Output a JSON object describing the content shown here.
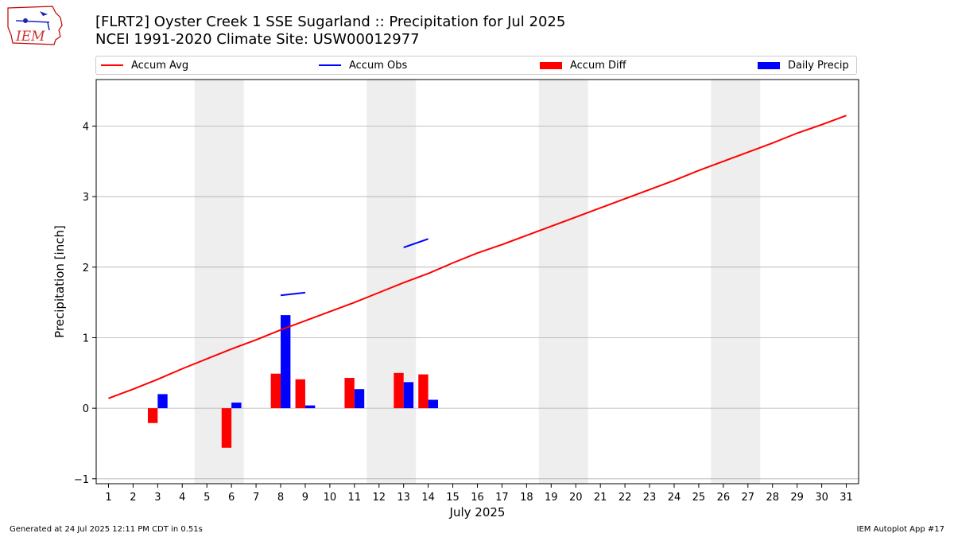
{
  "header": {
    "title_line1": "[FLRT2] Oyster Creek 1 SSE Sugarland :: Precipitation for Jul 2025",
    "title_line2": "NCEI 1991-2020 Climate Site: USW00012977",
    "logo_text": "IEM"
  },
  "footer": {
    "left": "Generated at 24 Jul 2025 12:11 PM CDT in 0.51s",
    "right": "IEM Autoplot App #17"
  },
  "colors": {
    "accum_avg": "#ff0000",
    "accum_obs": "#0000ff",
    "accum_diff": "#ff0000",
    "daily_precip": "#0000ff",
    "weekend_shade": "#eeeeee",
    "grid": "#b0b0b0"
  },
  "chart_data": {
    "type": "bar",
    "title": "[FLRT2] Oyster Creek 1 SSE Sugarland :: Precipitation for Jul 2025",
    "subtitle": "NCEI 1991-2020 Climate Site: USW00012977",
    "xlabel": "July 2025",
    "ylabel": "Precipitation [inch]",
    "xlim": [
      0.5,
      31.5
    ],
    "ylim": [
      -1.07,
      4.66
    ],
    "x_ticks": [
      1,
      2,
      3,
      4,
      5,
      6,
      7,
      8,
      9,
      10,
      11,
      12,
      13,
      14,
      15,
      16,
      17,
      18,
      19,
      20,
      21,
      22,
      23,
      24,
      25,
      26,
      27,
      28,
      29,
      30,
      31
    ],
    "y_ticks": [
      -1,
      0,
      1,
      2,
      3,
      4
    ],
    "grid": "horizontal",
    "legend_placement": "top",
    "weekend_shading": [
      [
        4.5,
        6.5
      ],
      [
        11.5,
        13.5
      ],
      [
        18.5,
        20.5
      ],
      [
        25.5,
        27.5
      ]
    ],
    "series": [
      {
        "name": "Accum Avg",
        "kind": "line",
        "x": [
          1,
          2,
          3,
          4,
          5,
          6,
          7,
          8,
          9,
          10,
          11,
          12,
          13,
          14,
          15,
          16,
          17,
          18,
          19,
          20,
          21,
          22,
          23,
          24,
          25,
          26,
          27,
          28,
          29,
          30,
          31
        ],
        "values": [
          0.14,
          0.27,
          0.41,
          0.56,
          0.7,
          0.84,
          0.97,
          1.11,
          1.24,
          1.37,
          1.5,
          1.64,
          1.78,
          1.91,
          2.06,
          2.2,
          2.32,
          2.45,
          2.58,
          2.71,
          2.84,
          2.97,
          3.1,
          3.23,
          3.37,
          3.5,
          3.63,
          3.76,
          3.9,
          4.02,
          4.15
        ]
      },
      {
        "name": "Accum Obs",
        "kind": "line",
        "x": [
          1,
          2,
          3,
          4,
          5,
          6,
          7,
          8,
          9,
          10,
          11,
          12,
          13,
          14,
          15,
          16,
          17,
          18,
          19,
          20,
          21,
          22,
          23,
          24,
          25,
          26,
          27,
          28,
          29,
          30,
          31
        ],
        "values": [
          null,
          null,
          null,
          null,
          null,
          null,
          null,
          1.6,
          1.64,
          null,
          null,
          null,
          2.28,
          2.4,
          null,
          null,
          null,
          null,
          null,
          null,
          null,
          null,
          null,
          null,
          null,
          null,
          null,
          null,
          null,
          null,
          null
        ]
      },
      {
        "name": "Accum Diff",
        "kind": "bar",
        "x": [
          3,
          6,
          8,
          9,
          11,
          13,
          14
        ],
        "values": [
          -0.21,
          -0.56,
          0.49,
          0.41,
          0.43,
          0.5,
          0.48
        ]
      },
      {
        "name": "Daily Precip",
        "kind": "bar",
        "x": [
          3,
          6,
          8,
          9,
          11,
          13,
          14
        ],
        "values": [
          0.2,
          0.08,
          1.32,
          0.04,
          0.27,
          0.37,
          0.12
        ]
      }
    ]
  }
}
